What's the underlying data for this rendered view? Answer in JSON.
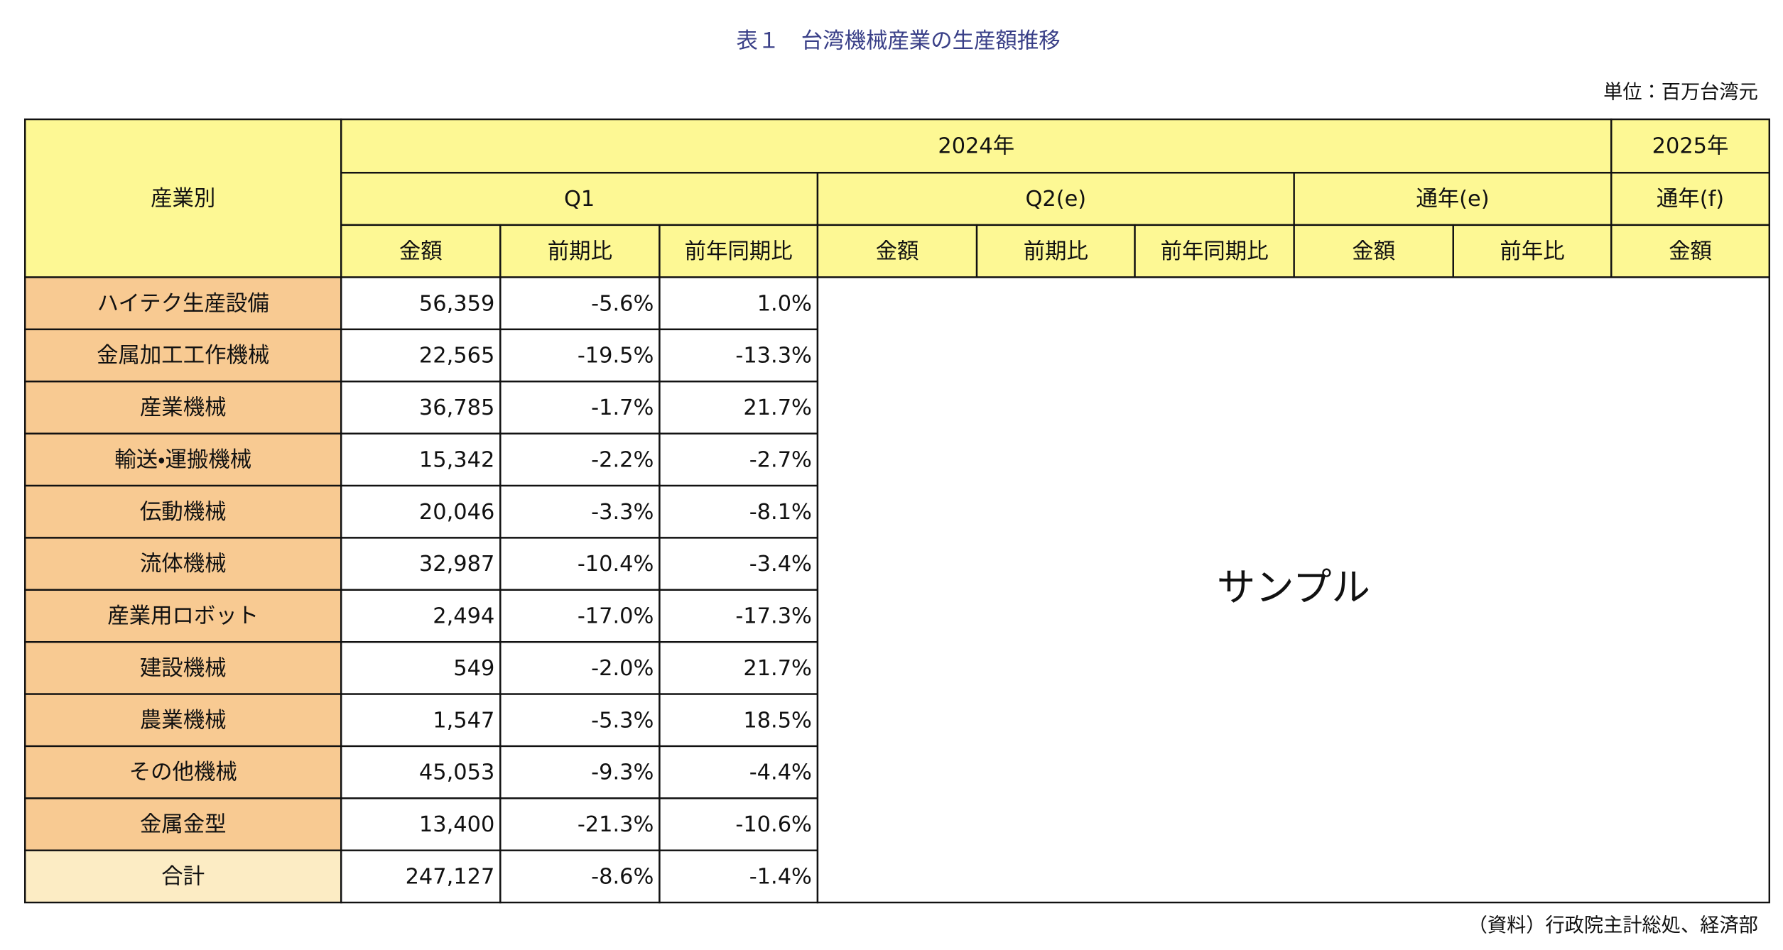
{
  "title": "表１　台湾機械産業の生産額推移",
  "unit": "単位：百万台湾元",
  "header": {
    "row_header": "産業別",
    "year_2024": "2024年",
    "year_2025": "2025年",
    "q1": "Q1",
    "q2": "Q2(e)",
    "full_e": "通年(e)",
    "full_f": "通年(f)",
    "sub": [
      "金額",
      "前期比",
      "前年同期比",
      "金額",
      "前期比",
      "前年同期比",
      "金額",
      "前年比",
      "金額"
    ]
  },
  "rows": [
    [
      "ハイテク生産設備",
      "56,359",
      "-5.6%",
      "1.0%"
    ],
    [
      "金属加工工作機械",
      "22,565",
      "-19.5%",
      "-13.3%"
    ],
    [
      "産業機械",
      "36,785",
      "-1.7%",
      "21.7%"
    ],
    [
      "輸送・運搬機械",
      "15,342",
      "-2.2%",
      "-2.7%"
    ],
    [
      "伝動機械",
      "20,046",
      "-3.3%",
      "-8.1%"
    ],
    [
      "流体機械",
      "32,987",
      "-10.4%",
      "-3.4%"
    ],
    [
      "産業用ロボット",
      "2,494",
      "-17.0%",
      "-17.3%"
    ],
    [
      "建設機械",
      "549",
      "-2.0%",
      "21.7%"
    ],
    [
      "農業機械",
      "1,547",
      "-5.3%",
      "18.5%"
    ],
    [
      "その他機械",
      "45,053",
      "-9.3%",
      "-4.4%"
    ],
    [
      "金属金型",
      "13,400",
      "-21.3%",
      "-10.6%"
    ],
    [
      "合計",
      "247,127",
      "-8.6%",
      "-1.4%"
    ]
  ],
  "placeholder": "サンプル",
  "source": "（資料）行政院主計総処、経済部"
}
